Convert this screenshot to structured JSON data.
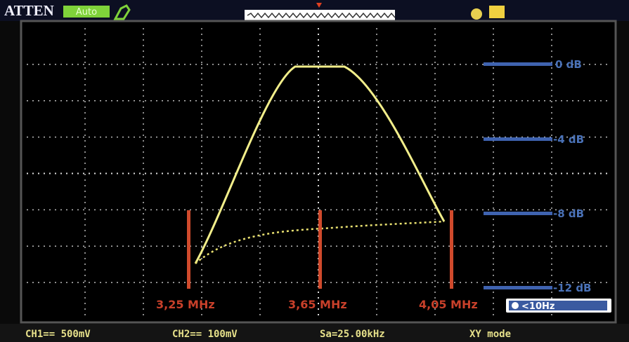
{
  "header": {
    "brand": "ATTEN",
    "trigger_mode": "Auto"
  },
  "levels": [
    "0 dB",
    "-4 dB",
    "-8 dB",
    "-12 dB"
  ],
  "markers": [
    "3,25 MHz",
    "3,65 MHz",
    "4,05 MHz"
  ],
  "filter": "<10Hz",
  "status": [
    "CH1== 500mV",
    "CH2== 100mV",
    "Sa=25.00kHz",
    "XY mode"
  ]
}
